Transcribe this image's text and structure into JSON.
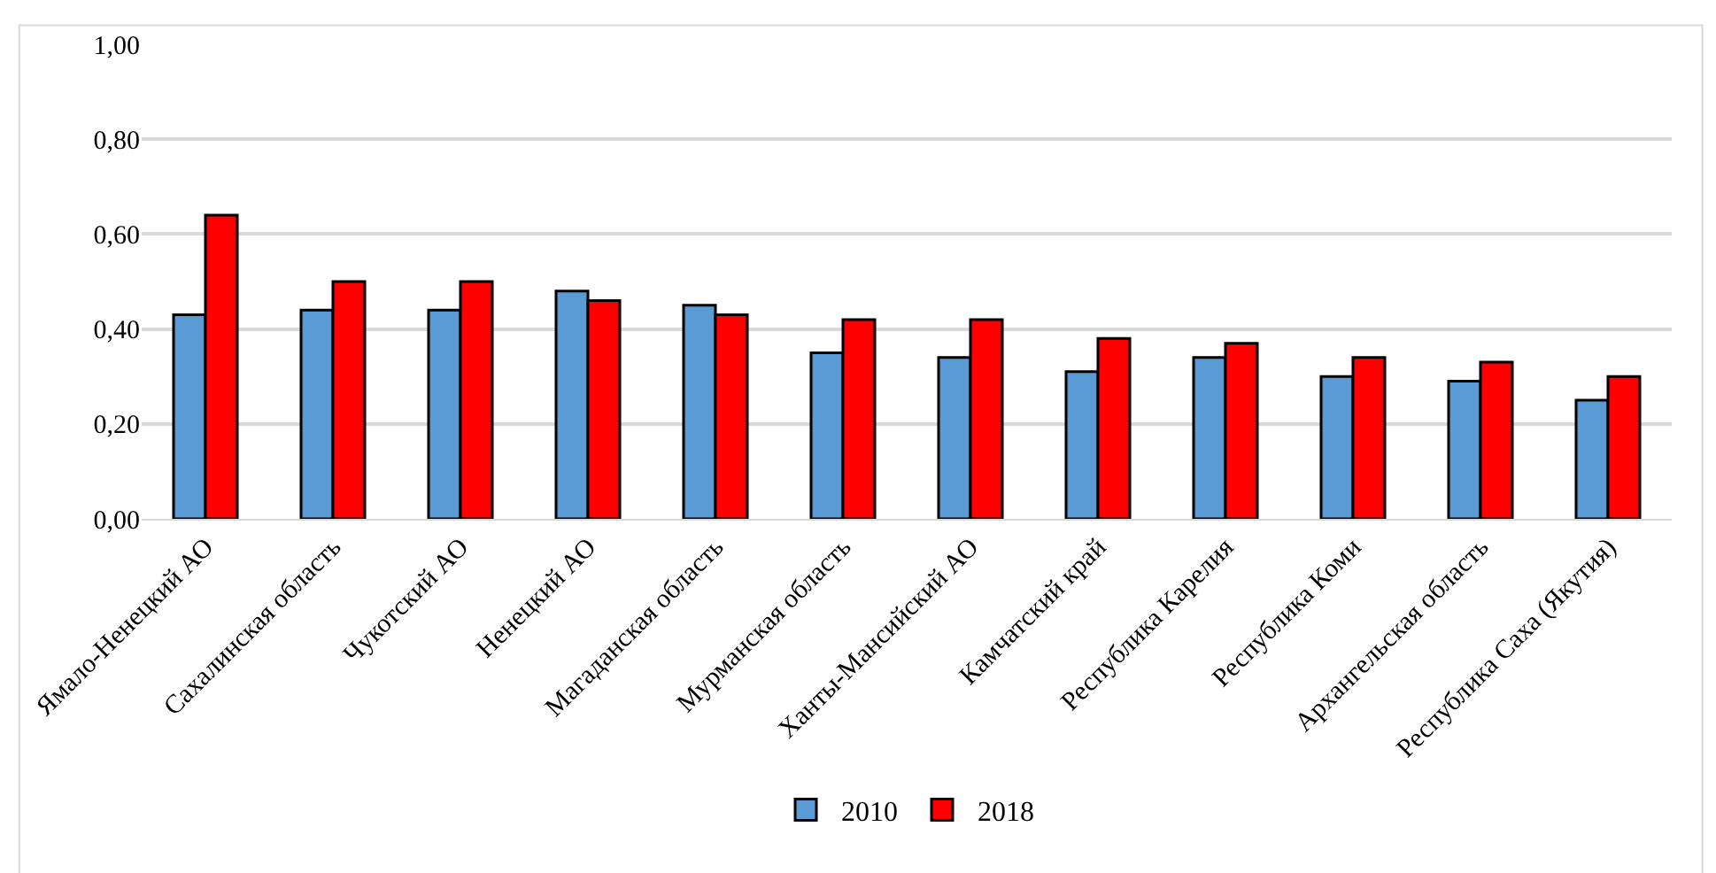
{
  "chart_data": {
    "type": "bar",
    "categories": [
      "Ямало-Ненецкий АО",
      "Сахалинская область",
      "Чукотский АО",
      "Ненецкий АО",
      "Магаданская область",
      "Мурманская область",
      "Ханты-Мансийский АО",
      "Камчатский край",
      "Республика Карелия",
      "Республика Коми",
      "Архангельская область",
      "Республика Саха (Якутия)"
    ],
    "series": [
      {
        "name": "2010",
        "color": "#5b9bd5",
        "values": [
          0.43,
          0.44,
          0.44,
          0.48,
          0.45,
          0.35,
          0.34,
          0.31,
          0.34,
          0.3,
          0.29,
          0.25
        ]
      },
      {
        "name": "2018",
        "color": "#ff0000",
        "values": [
          0.64,
          0.5,
          0.5,
          0.46,
          0.43,
          0.42,
          0.42,
          0.38,
          0.37,
          0.34,
          0.33,
          0.3
        ]
      }
    ],
    "ylim": [
      0,
      1
    ],
    "yticks": [
      {
        "value": 0,
        "label": "0,00"
      },
      {
        "value": 0.2,
        "label": "0,20"
      },
      {
        "value": 0.4,
        "label": "0,40"
      },
      {
        "value": 0.6,
        "label": "0,60"
      },
      {
        "value": 0.8,
        "label": "0,80"
      },
      {
        "value": 1,
        "label": "1,00"
      }
    ],
    "grid": "y",
    "legend": "bottom"
  }
}
